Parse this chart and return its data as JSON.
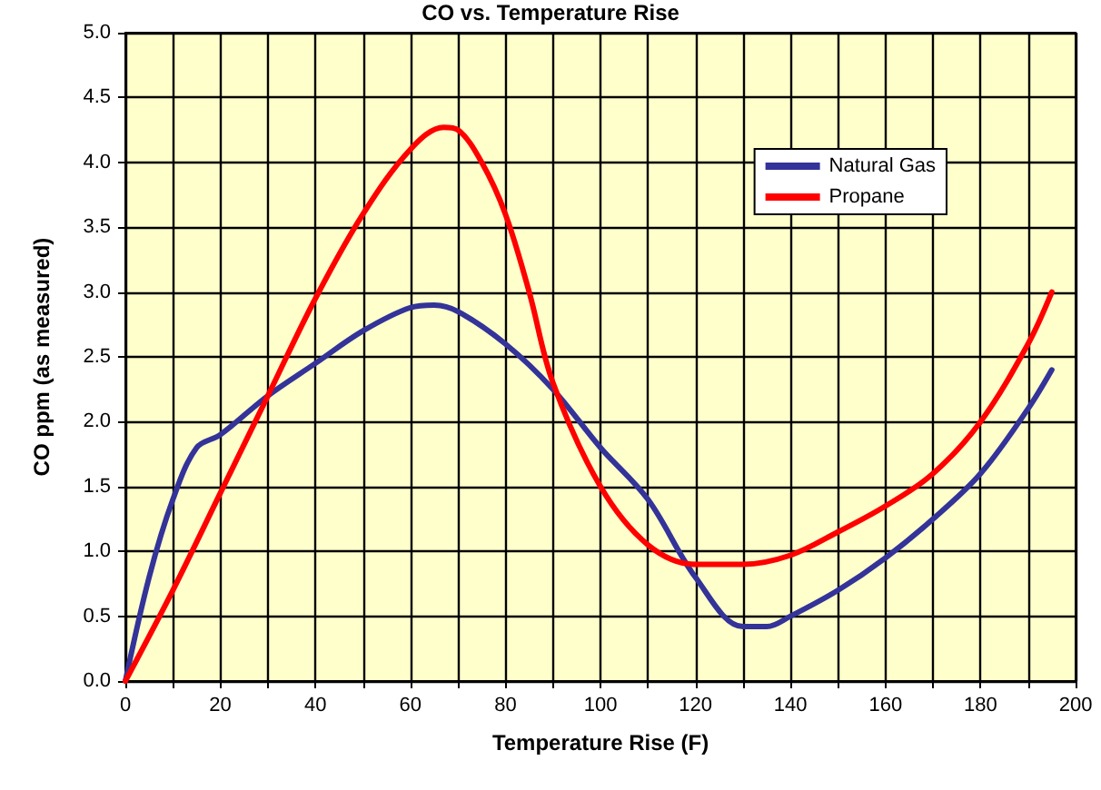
{
  "chart_data": {
    "type": "line",
    "title": "CO vs. Temperature Rise",
    "xlabel": "Temperature Rise (F)",
    "ylabel": "CO ppm (as measured)",
    "xlim": [
      0,
      200
    ],
    "xticks": [
      0,
      {
        "value": 10,
        "label": null
      },
      20,
      {
        "value": 30,
        "label": null
      },
      40,
      {
        "value": 50,
        "label": null
      },
      60,
      {
        "value": 70,
        "label": null
      },
      80,
      {
        "value": 90,
        "label": null
      },
      100,
      {
        "value": 110,
        "label": null
      },
      120,
      {
        "value": 130,
        "label": null
      },
      140,
      {
        "value": 150,
        "label": null
      },
      160,
      {
        "value": 170,
        "label": null
      },
      180,
      {
        "value": 190,
        "label": null
      },
      200
    ],
    "ylim": [
      0,
      5
    ],
    "yticks": [
      {
        "value": 0,
        "label": "0.0"
      },
      0.5,
      {
        "value": 1,
        "label": "1.0"
      },
      1.5,
      {
        "value": 2,
        "label": "2.0"
      },
      2.5,
      {
        "value": 3,
        "label": "3.0"
      },
      3.5,
      {
        "value": 4,
        "label": "4.0"
      },
      4.5,
      {
        "value": 5,
        "label": "5.0"
      }
    ],
    "grid": true,
    "legend": "top right",
    "marker": "none",
    "line_style": "solid",
    "series": [
      {
        "name": "Natural Gas",
        "color": "#333399",
        "x": [
          0,
          5,
          10,
          15,
          20,
          30,
          40,
          50,
          60,
          65,
          70,
          80,
          90,
          100,
          110,
          120,
          130,
          135,
          140,
          150,
          160,
          170,
          180,
          190,
          195
        ],
        "values": [
          0,
          0.8,
          1.4,
          1.8,
          1.9,
          2.2,
          2.45,
          2.7,
          2.88,
          2.9,
          2.85,
          2.6,
          2.25,
          1.8,
          1.4,
          0.8,
          0.42,
          0.42,
          0.5,
          0.7,
          0.95,
          1.25,
          1.6,
          2.1,
          2.4
        ]
      },
      {
        "name": "Propane",
        "color": "#ff0000",
        "x": [
          0,
          10,
          20,
          30,
          40,
          50,
          60,
          67,
          70,
          75,
          80,
          85,
          90,
          100,
          110,
          120,
          130,
          140,
          150,
          160,
          170,
          180,
          190,
          195
        ],
        "values": [
          0,
          0.7,
          1.45,
          2.2,
          2.95,
          3.6,
          4.1,
          4.27,
          4.25,
          4.0,
          3.6,
          3.0,
          2.3,
          1.5,
          1.05,
          0.9,
          0.9,
          0.97,
          1.15,
          1.35,
          1.6,
          2.0,
          2.6,
          3.0
        ]
      }
    ]
  }
}
